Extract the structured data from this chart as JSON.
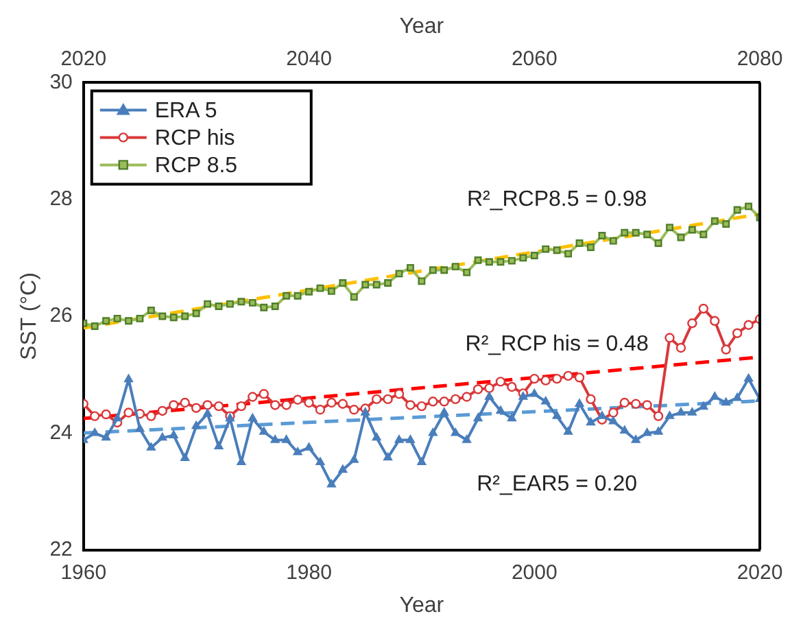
{
  "chart_data": {
    "type": "line",
    "xlabel": "Year",
    "x2label": "Year",
    "ylabel": "SST (°C)",
    "xlim": [
      1960,
      2020
    ],
    "xticks": [
      1960,
      1980,
      2000,
      2020
    ],
    "x2lim": [
      2020,
      2080
    ],
    "x2ticks": [
      2020,
      2040,
      2060,
      2080
    ],
    "ylim": [
      22,
      30
    ],
    "yticks": [
      22,
      24,
      26,
      28,
      30
    ],
    "grid": false,
    "legend": "top left",
    "x": [
      1960,
      1961,
      1962,
      1963,
      1964,
      1965,
      1966,
      1967,
      1968,
      1969,
      1970,
      1971,
      1972,
      1973,
      1974,
      1975,
      1976,
      1977,
      1978,
      1979,
      1980,
      1981,
      1982,
      1983,
      1984,
      1985,
      1986,
      1987,
      1988,
      1989,
      1990,
      1991,
      1992,
      1993,
      1994,
      1995,
      1996,
      1997,
      1998,
      1999,
      2000,
      2001,
      2002,
      2003,
      2004,
      2005,
      2006,
      2007,
      2008,
      2009,
      2010,
      2011,
      2012,
      2013,
      2014,
      2015,
      2016,
      2017,
      2018,
      2019,
      2020
    ],
    "series": [
      {
        "name": "ERA 5",
        "color": "#4a7ebb",
        "marker": "triangle",
        "values": [
          23.88,
          24.0,
          23.92,
          24.25,
          24.92,
          24.07,
          23.75,
          23.92,
          23.96,
          23.57,
          24.12,
          24.33,
          23.77,
          24.25,
          23.5,
          24.25,
          24.02,
          23.88,
          23.88,
          23.67,
          23.75,
          23.5,
          23.12,
          23.37,
          23.54,
          24.35,
          23.92,
          23.58,
          23.88,
          23.88,
          23.5,
          24.0,
          24.35,
          24.0,
          23.88,
          24.25,
          24.62,
          24.38,
          24.25,
          24.62,
          24.67,
          24.54,
          24.29,
          24.02,
          24.5,
          24.18,
          24.29,
          24.2,
          24.04,
          23.88,
          24.0,
          24.02,
          24.29,
          24.35,
          24.35,
          24.45,
          24.62,
          24.52,
          24.6,
          24.93,
          24.58
        ]
      },
      {
        "name": "RCP his",
        "color": "#d9383a",
        "marker": "circle",
        "values": [
          24.5,
          24.29,
          24.32,
          24.18,
          24.35,
          24.33,
          24.29,
          24.38,
          24.48,
          24.52,
          24.43,
          24.48,
          24.46,
          24.29,
          24.46,
          24.62,
          24.67,
          24.48,
          24.48,
          24.57,
          24.52,
          24.4,
          24.52,
          24.5,
          24.4,
          24.42,
          24.58,
          24.58,
          24.67,
          24.48,
          24.46,
          24.54,
          24.54,
          24.58,
          24.62,
          24.75,
          24.77,
          24.88,
          24.79,
          24.68,
          24.93,
          24.9,
          24.93,
          24.98,
          24.95,
          24.58,
          24.23,
          24.35,
          24.52,
          24.5,
          24.48,
          24.29,
          25.63,
          25.46,
          25.88,
          26.13,
          25.92,
          25.43,
          25.71,
          25.85,
          25.95
        ]
      },
      {
        "name": "RCP 8.5",
        "color": "#9bbb59",
        "marker": "square",
        "axis": "x2",
        "x": [
          2020,
          2021,
          2022,
          2023,
          2024,
          2025,
          2026,
          2027,
          2028,
          2029,
          2030,
          2031,
          2032,
          2033,
          2034,
          2035,
          2036,
          2037,
          2038,
          2039,
          2040,
          2041,
          2042,
          2043,
          2044,
          2045,
          2046,
          2047,
          2048,
          2049,
          2050,
          2051,
          2052,
          2053,
          2054,
          2055,
          2056,
          2057,
          2058,
          2059,
          2060,
          2061,
          2062,
          2063,
          2064,
          2065,
          2066,
          2067,
          2068,
          2069,
          2070,
          2071,
          2072,
          2073,
          2074,
          2075,
          2076,
          2077,
          2078,
          2079,
          2080
        ],
        "values": [
          25.88,
          25.83,
          25.92,
          25.96,
          25.92,
          25.96,
          26.1,
          26.0,
          25.98,
          26.0,
          26.05,
          26.21,
          26.17,
          26.21,
          26.25,
          26.23,
          26.15,
          26.17,
          26.35,
          26.35,
          26.42,
          26.48,
          26.43,
          26.57,
          26.33,
          26.54,
          26.54,
          26.57,
          26.73,
          26.83,
          26.6,
          26.79,
          26.79,
          26.85,
          26.75,
          26.96,
          26.93,
          26.93,
          26.95,
          27.0,
          27.04,
          27.15,
          27.13,
          27.07,
          27.25,
          27.18,
          27.38,
          27.29,
          27.43,
          27.43,
          27.4,
          27.25,
          27.52,
          27.35,
          27.48,
          27.4,
          27.63,
          27.58,
          27.82,
          27.88,
          27.69
        ]
      },
      {
        "color": "#5b9bd5",
        "marker": "none",
        "line_style": "dashed",
        "x": [
          1960,
          2020
        ],
        "values": [
          24.0,
          24.55
        ]
      },
      {
        "color": "#ff0000",
        "marker": "none",
        "line_style": "dashed",
        "x": [
          1960,
          2020
        ],
        "values": [
          24.25,
          25.3
        ]
      },
      {
        "color": "#ffc000",
        "marker": "none",
        "line_style": "dashed",
        "axis": "x2",
        "x": [
          2020,
          2080
        ],
        "values": [
          25.8,
          27.75
        ]
      }
    ],
    "annotations": [
      "R²_RCP8.5 = 0.98",
      "R²_RCP his = 0.48",
      "R²_EAR5 = 0.20"
    ]
  }
}
